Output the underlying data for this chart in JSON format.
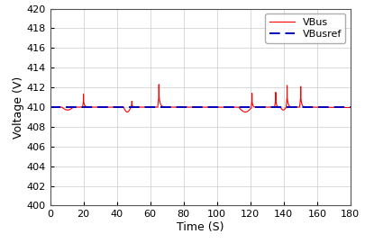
{
  "title": "",
  "xlabel": "Time (S)",
  "ylabel": "Voltage (V)",
  "xlim": [
    0,
    180
  ],
  "ylim": [
    400,
    420
  ],
  "yticks": [
    400,
    402,
    404,
    406,
    408,
    410,
    412,
    414,
    416,
    418,
    420
  ],
  "xticks": [
    0,
    20,
    40,
    60,
    80,
    100,
    120,
    140,
    160,
    180
  ],
  "vbus_color": "#ff0000",
  "vbusref_color": "#0000bb",
  "vbus_label": "VBus",
  "vbusref_label": "VBusref",
  "vbusref_value": 410.0,
  "background_color": "#ffffff",
  "grid_color": "#c8c8c8",
  "figsize": [
    4.05,
    2.7
  ],
  "dpi": 100,
  "legend_order": [
    "vbus",
    "vbusref"
  ]
}
